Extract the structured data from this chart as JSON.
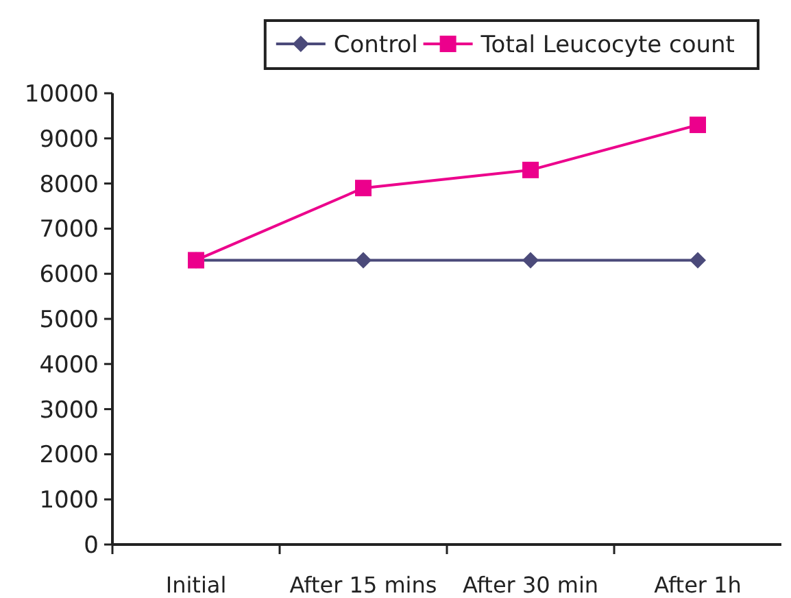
{
  "chart_data": {
    "type": "line",
    "categories": [
      "Initial",
      "After 15 mins",
      "After 30 min",
      "After 1h"
    ],
    "series": [
      {
        "name": "Control",
        "color": "#4b4a7a",
        "marker": "diamond",
        "values": [
          6300,
          6300,
          6300,
          6300
        ]
      },
      {
        "name": "Total Leucocyte count",
        "color": "#ec008c",
        "marker": "square",
        "values": [
          6300,
          7900,
          8300,
          9300
        ]
      }
    ],
    "ylim": [
      0,
      10000
    ],
    "yticks": [
      0,
      1000,
      2000,
      3000,
      4000,
      5000,
      6000,
      7000,
      8000,
      9000,
      10000
    ],
    "grid": false,
    "legend": "top right",
    "line_style": "solid"
  }
}
